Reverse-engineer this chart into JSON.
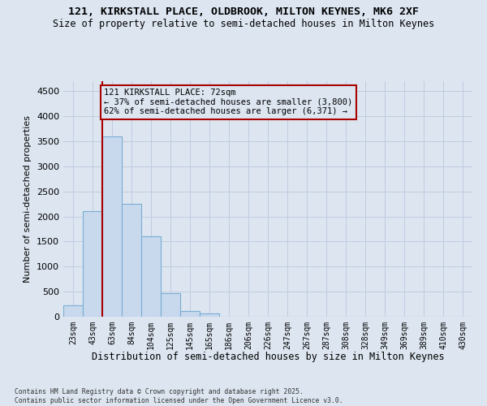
{
  "title_line1": "121, KIRKSTALL PLACE, OLDBROOK, MILTON KEYNES, MK6 2XF",
  "title_line2": "Size of property relative to semi-detached houses in Milton Keynes",
  "xlabel": "Distribution of semi-detached houses by size in Milton Keynes",
  "ylabel": "Number of semi-detached properties",
  "annotation_title": "121 KIRKSTALL PLACE: 72sqm",
  "annotation_line2": "← 37% of semi-detached houses are smaller (3,800)",
  "annotation_line3": "62% of semi-detached houses are larger (6,371) →",
  "footer_line1": "Contains HM Land Registry data © Crown copyright and database right 2025.",
  "footer_line2": "Contains public sector information licensed under the Open Government Licence v3.0.",
  "categories": [
    "23sqm",
    "43sqm",
    "63sqm",
    "84sqm",
    "104sqm",
    "125sqm",
    "145sqm",
    "165sqm",
    "186sqm",
    "206sqm",
    "226sqm",
    "247sqm",
    "267sqm",
    "287sqm",
    "308sqm",
    "328sqm",
    "349sqm",
    "369sqm",
    "389sqm",
    "410sqm",
    "430sqm"
  ],
  "values": [
    230,
    2100,
    3600,
    2250,
    1600,
    470,
    110,
    60,
    0,
    0,
    0,
    0,
    0,
    0,
    0,
    0,
    0,
    0,
    0,
    0,
    0
  ],
  "bar_color": "#c8d9ee",
  "bar_edge_color": "#7aadd4",
  "vline_color": "#aa0000",
  "annotation_box_edgecolor": "#aa0000",
  "background_color": "#dce5f0",
  "grid_color": "#c0cce0",
  "ylim": [
    0,
    4700
  ],
  "yticks": [
    0,
    500,
    1000,
    1500,
    2000,
    2500,
    3000,
    3500,
    4000,
    4500
  ]
}
